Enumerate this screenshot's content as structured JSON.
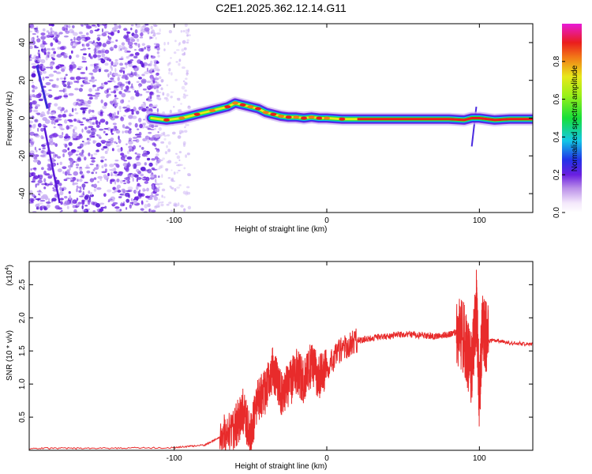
{
  "title": "C2E1.2025.362.12.14.G11",
  "chart_data": [
    {
      "type": "heatmap",
      "xlabel": "Height of straight line (km)",
      "ylabel": "Frequency (Hz)",
      "xlim": [
        -195,
        135
      ],
      "ylim": [
        -50,
        50
      ],
      "xticks": [
        -100,
        0,
        100
      ],
      "xtick_labels": [
        "-100",
        "0",
        "100"
      ],
      "yticks": [
        -40,
        -20,
        0,
        20,
        40
      ],
      "ytick_labels": [
        "-40",
        "-20",
        "0",
        "20",
        "40"
      ],
      "colorbar": {
        "label": "Normalized spectral amplitude",
        "range": [
          0,
          1
        ],
        "ticks": [
          0,
          0.2,
          0.4,
          0.6,
          0.8
        ],
        "tick_labels": [
          "0.0",
          "0.2",
          "0.4",
          "0.6",
          "0.8"
        ]
      },
      "ridge": {
        "x": [
          -115,
          -105,
          -95,
          -85,
          -75,
          -65,
          -60,
          -55,
          -50,
          -45,
          -40,
          -35,
          -30,
          -25,
          -20,
          -15,
          -10,
          -5,
          0,
          10,
          20,
          40,
          60,
          80,
          90,
          95,
          100,
          110,
          120,
          135
        ],
        "y": [
          0,
          -1,
          0,
          2,
          4,
          6,
          8,
          7,
          6,
          5,
          3,
          2,
          1,
          0.5,
          0.5,
          0,
          0.5,
          0,
          0,
          -0.5,
          -0.5,
          -0.5,
          -0.5,
          -0.5,
          -1,
          0,
          0,
          -1,
          -0.5,
          -0.5
        ]
      }
    },
    {
      "type": "line",
      "xlabel": "Height of straight line (km)",
      "ylabel": "SNR (10 * v/v)",
      "y_multiplier": "(x10",
      "y_multiplier_exp": "4",
      "multiplier_suffix": ")",
      "xlim": [
        -195,
        135
      ],
      "ylim": [
        0,
        2.85
      ],
      "xticks": [
        -100,
        0,
        100
      ],
      "xtick_labels": [
        "-100",
        "0",
        "100"
      ],
      "yticks": [
        0.5,
        1.0,
        1.5,
        2.0,
        2.5
      ],
      "ytick_labels": [
        "0.5",
        "1.0",
        "1.5",
        "2.0",
        "2.5"
      ],
      "series": [
        {
          "name": "SNR",
          "color": "#e82b2b",
          "x": [
            -195,
            -150,
            -100,
            -80,
            -70,
            -60,
            -55,
            -50,
            -45,
            -40,
            -35,
            -30,
            -25,
            -20,
            -15,
            -10,
            -5,
            0,
            10,
            20,
            30,
            40,
            50,
            60,
            70,
            80,
            85,
            90,
            95,
            98,
            100,
            102,
            105,
            110,
            120,
            135
          ],
          "values": [
            0.03,
            0.03,
            0.04,
            0.08,
            0.2,
            0.35,
            0.6,
            0.2,
            0.75,
            0.9,
            1.25,
            0.85,
            0.95,
            1.2,
            1.05,
            1.3,
            1.1,
            1.25,
            1.55,
            1.65,
            1.7,
            1.72,
            1.75,
            1.74,
            1.72,
            1.75,
            1.78,
            1.7,
            1.2,
            2.2,
            0.8,
            1.9,
            1.65,
            1.66,
            1.62,
            1.6
          ]
        }
      ]
    }
  ]
}
